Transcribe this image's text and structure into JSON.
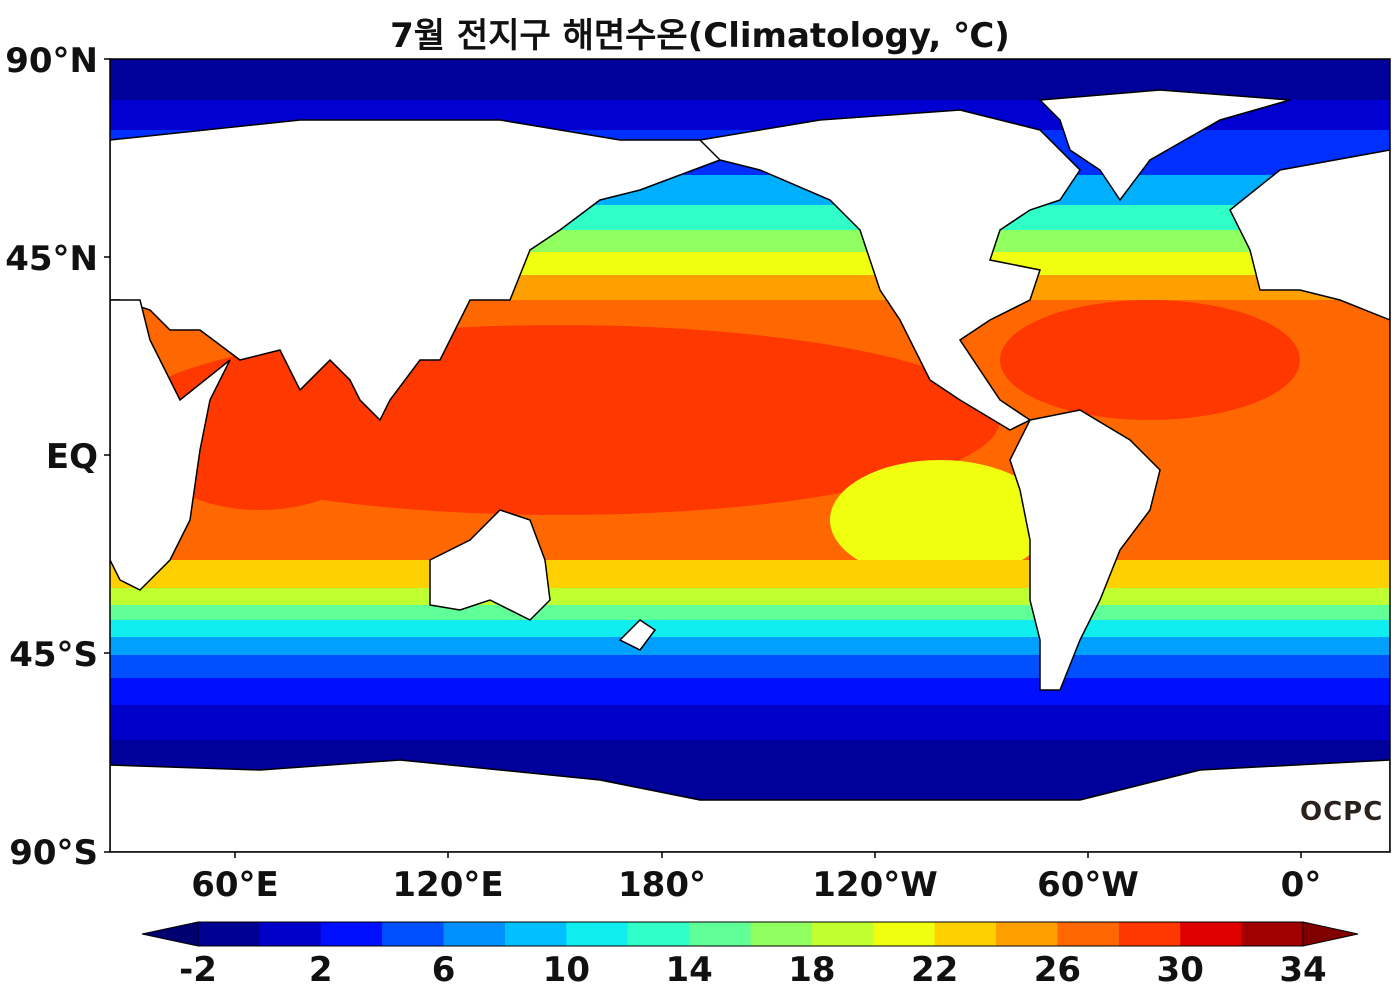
{
  "title": "7월 전지구 해면수온(Climatology, ℃)",
  "lat_ticks": [
    "90°N",
    "45°N",
    "EQ",
    "45°S",
    "90°S"
  ],
  "lon_ticks": [
    "60°E",
    "120°E",
    "180°",
    "120°W",
    "60°W",
    "0°"
  ],
  "colorbar": {
    "labels": [
      "-2",
      "2",
      "6",
      "10",
      "14",
      "18",
      "22",
      "26",
      "30",
      "34"
    ],
    "min": -2,
    "max": 34,
    "step": 2,
    "colors": [
      "#000093",
      "#0000c8",
      "#0010ff",
      "#0050ff",
      "#0090ff",
      "#00c0ff",
      "#10eef0",
      "#30ffc8",
      "#60ff98",
      "#90ff60",
      "#c0ff30",
      "#f0ff10",
      "#ffd000",
      "#ffa000",
      "#ff6800",
      "#ff3800",
      "#e00000",
      "#a00000"
    ]
  },
  "logo": "OCPC"
}
